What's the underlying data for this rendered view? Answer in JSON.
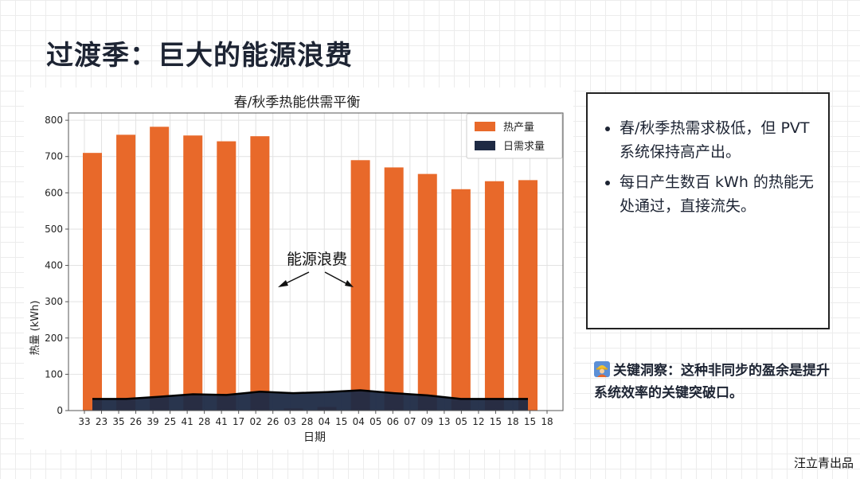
{
  "page": {
    "title": "过渡季：巨大的能源浪费",
    "footer": "汪立青出品"
  },
  "info_panel": {
    "bullets": [
      "春/秋季热需求极低，但 PVT 系统保持高产出。",
      "每日产生数百 kWh 的热能无处通过，直接流失。"
    ]
  },
  "insight": {
    "icon": "construction-worker-icon",
    "text": "关键洞察：这种非同步的盈余是提升系统效率的关键突破口。"
  },
  "colors": {
    "production": "#e8692a",
    "demand": "#1e2a44"
  },
  "chart_data": {
    "type": "bar",
    "title": "春/秋季热能供需平衡",
    "xlabel": "日期",
    "ylabel": "热量 (kWh)",
    "ylim": [
      0,
      820
    ],
    "yticks": [
      0,
      100,
      200,
      300,
      400,
      500,
      600,
      700,
      800
    ],
    "grid": true,
    "legend_position": "top-right",
    "tick_labels": [
      "33",
      "23",
      "35",
      "26",
      "39",
      "25",
      "41",
      "28",
      "41",
      "17",
      "02",
      "26",
      "03",
      "28",
      "04",
      "15",
      "04",
      "05",
      "06",
      "07",
      "09",
      "13",
      "05",
      "12",
      "15",
      "18",
      "15",
      "18"
    ],
    "series": [
      {
        "name": "热产量",
        "type": "bar",
        "values": [
          710,
          760,
          782,
          758,
          742,
          756,
          6,
          10,
          690,
          670,
          652,
          610,
          632,
          635
        ]
      },
      {
        "name": "日需求量",
        "type": "area",
        "values": [
          32,
          32,
          38,
          45,
          43,
          52,
          48,
          51,
          56,
          48,
          42,
          32,
          32,
          32
        ]
      }
    ],
    "annotation": "能源浪费"
  }
}
